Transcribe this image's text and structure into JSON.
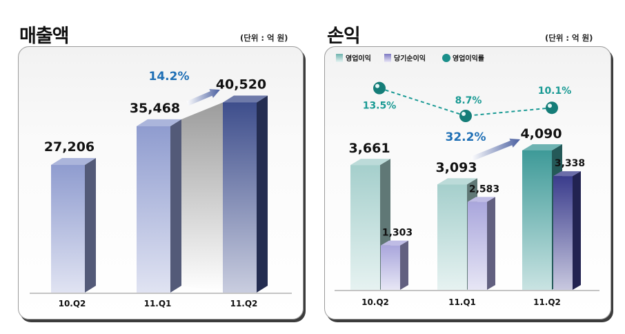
{
  "charts": {
    "revenue": {
      "title": "매출액",
      "unit": "(단위 : 억 원)"
    },
    "profit": {
      "title": "손익",
      "unit": "(단위 : 억 원)"
    }
  },
  "chart_data": [
    {
      "type": "bar",
      "title": "매출액",
      "unit": "(단위 : 억 원)",
      "categories": [
        "10.Q2",
        "11.Q1",
        "11.Q2"
      ],
      "series": [
        {
          "values": [
            27206,
            35468,
            40520
          ],
          "labels": [
            "27,206",
            "35,468",
            "40,520"
          ],
          "color": "#7a86c0"
        }
      ],
      "annotation": {
        "text": "14.2%",
        "from": "11.Q1",
        "to": "11.Q2",
        "color": "#1e6fb5"
      },
      "grid": false
    },
    {
      "type": "bar",
      "title": "손익",
      "unit": "(단위 : 억 원)",
      "categories": [
        "10.Q2",
        "11.Q1",
        "11.Q2"
      ],
      "legend": {
        "position": "top-left",
        "entries": [
          "영업이익",
          "당기순이익",
          "영업이익률"
        ]
      },
      "series": [
        {
          "name": "영업이익",
          "values": [
            3661,
            3093,
            4090
          ],
          "labels": [
            "3,661",
            "3,093",
            "4,090"
          ],
          "color": "#9fcbc8"
        },
        {
          "name": "당기순이익",
          "values": [
            1303,
            2583,
            3338
          ],
          "labels": [
            "1,303",
            "2,583",
            "3,338"
          ],
          "color": "#8c88c8"
        },
        {
          "name": "영업이익률",
          "type": "line",
          "values": [
            13.5,
            8.7,
            10.1
          ],
          "labels": [
            "13.5%",
            "8.7%",
            "10.1%"
          ],
          "color": "#1a9a94"
        }
      ],
      "annotation": {
        "text": "32.2%",
        "from": "11.Q1",
        "to": "11.Q2",
        "color": "#1e6fb5"
      },
      "grid": false
    }
  ]
}
